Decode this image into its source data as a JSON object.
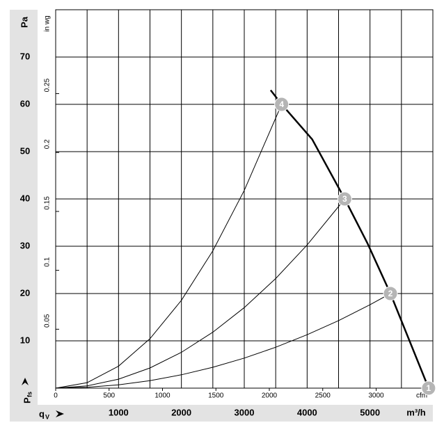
{
  "chart_data": {
    "type": "line",
    "x_unit": "m³/h",
    "x2_unit": "cfm",
    "y_unit": "Pa",
    "y2_unit": "in wg",
    "y_symbol": "P",
    "y_subscript": "fs",
    "x_symbol": "q",
    "x_subscript": "V",
    "xlim": [
      0,
      6000
    ],
    "xticks": [
      1000,
      2000,
      3000,
      4000,
      5000
    ],
    "xgrid": [
      500,
      1000,
      1500,
      2000,
      2500,
      3000,
      3500,
      4000,
      4500,
      5000,
      5500
    ],
    "x2lim": [
      0,
      3531
    ],
    "x2ticks": [
      0,
      500,
      1000,
      1500,
      2000,
      2500,
      3000
    ],
    "ylim": [
      0,
      80
    ],
    "yticks": [
      10,
      20,
      30,
      40,
      50,
      60,
      70
    ],
    "y2lim": [
      0,
      0.3212
    ],
    "y2ticks": [
      0.05,
      0.1,
      0.15,
      0.2,
      0.25
    ],
    "grid": true,
    "series": [
      {
        "name": "fan curve",
        "color": "#000000",
        "width": 2.5,
        "x": [
          3420,
          3594,
          4080,
          4598,
          4960,
          5325,
          5932
        ],
        "values": [
          63,
          60,
          52.6,
          40,
          30.6,
          20,
          0
        ]
      },
      {
        "name": "system 4",
        "color": "#000000",
        "width": 1,
        "x": [
          0,
          500,
          1000,
          1500,
          2000,
          2500,
          3000,
          3594
        ],
        "values": [
          0,
          1.16,
          4.64,
          10.45,
          18.58,
          29.03,
          41.81,
          60
        ]
      },
      {
        "name": "system 3",
        "color": "#000000",
        "width": 1,
        "x": [
          0,
          500,
          1000,
          1500,
          2000,
          2500,
          3000,
          3500,
          4000,
          4598
        ],
        "values": [
          0,
          0.47,
          1.89,
          4.26,
          7.57,
          11.82,
          17.03,
          23.18,
          30.27,
          40
        ]
      },
      {
        "name": "system 2",
        "color": "#000000",
        "width": 1,
        "x": [
          0,
          500,
          1000,
          1500,
          2000,
          2500,
          3000,
          3500,
          4000,
          4500,
          5000,
          5325
        ],
        "values": [
          0,
          0.18,
          0.71,
          1.59,
          2.82,
          4.41,
          6.35,
          8.64,
          11.29,
          14.28,
          17.63,
          20
        ]
      }
    ],
    "points": [
      {
        "label": "4",
        "x": 3594,
        "y": 60
      },
      {
        "label": "3",
        "x": 4598,
        "y": 40
      },
      {
        "label": "2",
        "x": 5325,
        "y": 20
      },
      {
        "label": "1",
        "x": 5932,
        "y": 0
      }
    ]
  }
}
